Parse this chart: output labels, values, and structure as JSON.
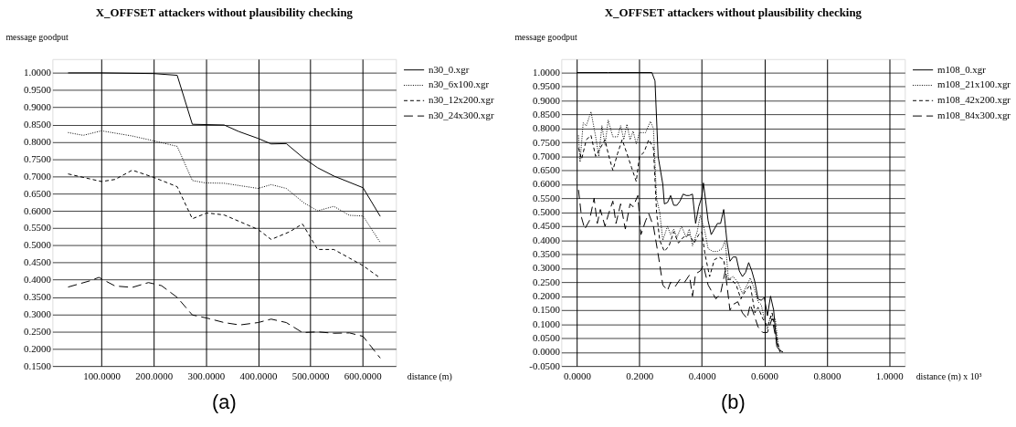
{
  "chart_data": [
    {
      "type": "line",
      "title": "X_OFFSET attackers without plausibility checking",
      "ylabel": "message goodput",
      "xlabel": "distance (m)",
      "annotations": [
        "(a)"
      ],
      "grid": true,
      "legend": "top right",
      "xlim": [
        6,
        664
      ],
      "ylim": [
        0.15,
        1.04
      ],
      "xticks": [
        {
          "value": 100,
          "label": "100.0000"
        },
        {
          "value": 200,
          "label": "200.0000"
        },
        {
          "value": 300,
          "label": "300.0000"
        },
        {
          "value": 400,
          "label": "400.0000"
        },
        {
          "value": 500,
          "label": "500.0000"
        },
        {
          "value": 600,
          "label": "600.0000"
        }
      ],
      "yticks": [
        {
          "value": 0.15,
          "label": "0.1500"
        },
        {
          "value": 0.2,
          "label": "0.2000"
        },
        {
          "value": 0.25,
          "label": "0.2500"
        },
        {
          "value": 0.3,
          "label": "0.3000"
        },
        {
          "value": 0.35,
          "label": "0.3500"
        },
        {
          "value": 0.4,
          "label": "0.4000"
        },
        {
          "value": 0.45,
          "label": "0.4500"
        },
        {
          "value": 0.5,
          "label": "0.5000"
        },
        {
          "value": 0.55,
          "label": "0.5500"
        },
        {
          "value": 0.6,
          "label": "0.6000"
        },
        {
          "value": 0.65,
          "label": "0.6500"
        },
        {
          "value": 0.7,
          "label": "0.7000"
        },
        {
          "value": 0.75,
          "label": "0.7500"
        },
        {
          "value": 0.8,
          "label": "0.8000"
        },
        {
          "value": 0.85,
          "label": "0.8500"
        },
        {
          "value": 0.9,
          "label": "0.9000"
        },
        {
          "value": 0.95,
          "label": "0.9500"
        },
        {
          "value": 1.0,
          "label": "1.0000"
        }
      ],
      "series": [
        {
          "name": "n30_0.xgr",
          "color": "#000000",
          "line_style": "solid",
          "x": [
            36,
            100,
            200,
            245,
            274,
            335,
            363,
            400,
            425,
            454,
            487,
            514,
            545,
            601,
            634
          ],
          "values": [
            1.0,
            1.0,
            0.998,
            0.993,
            0.851,
            0.849,
            0.83,
            0.81,
            0.794,
            0.795,
            0.753,
            0.725,
            0.701,
            0.667,
            0.584
          ]
        },
        {
          "name": "n30_6x100.xgr",
          "color": "#000000",
          "line_style": "dotted",
          "x": [
            36,
            65,
            100,
            159,
            200,
            245,
            274,
            299,
            335,
            400,
            425,
            454,
            487,
            514,
            545,
            575,
            601,
            634
          ],
          "values": [
            0.827,
            0.819,
            0.832,
            0.817,
            0.803,
            0.787,
            0.688,
            0.681,
            0.68,
            0.665,
            0.676,
            0.665,
            0.624,
            0.6,
            0.613,
            0.587,
            0.585,
            0.508
          ]
        },
        {
          "name": "n30_12x200.xgr",
          "color": "#000000",
          "line_style": "dashed",
          "x": [
            36,
            100,
            126,
            159,
            200,
            245,
            274,
            302,
            335,
            400,
            425,
            460,
            485,
            514,
            545,
            575,
            601,
            634
          ],
          "values": [
            0.707,
            0.685,
            0.691,
            0.718,
            0.697,
            0.67,
            0.577,
            0.594,
            0.588,
            0.546,
            0.517,
            0.539,
            0.562,
            0.488,
            0.488,
            0.463,
            0.441,
            0.405
          ]
        },
        {
          "name": "n30_24x300.xgr",
          "color": "#000000",
          "line_style": "dashed",
          "x": [
            36,
            80,
            95,
            126,
            159,
            190,
            215,
            245,
            274,
            302,
            335,
            365,
            400,
            425,
            454,
            485,
            514,
            545,
            575,
            601,
            634
          ],
          "values": [
            0.379,
            0.398,
            0.407,
            0.382,
            0.378,
            0.392,
            0.383,
            0.349,
            0.298,
            0.289,
            0.276,
            0.269,
            0.276,
            0.286,
            0.276,
            0.247,
            0.249,
            0.245,
            0.246,
            0.236,
            0.173
          ]
        }
      ]
    },
    {
      "type": "line",
      "title": "X_OFFSET attackers without plausibility checking",
      "ylabel": "message goodput",
      "xlabel": "distance (m) x 10³",
      "annotations": [
        "(b)"
      ],
      "grid": true,
      "legend": "top right",
      "xlim": [
        -0.05,
        1.05
      ],
      "ylim": [
        -0.05,
        1.048
      ],
      "xticks": [
        {
          "value": 0,
          "label": "0.0000"
        },
        {
          "value": 0.2,
          "label": "0.2000"
        },
        {
          "value": 0.4,
          "label": "0.4000"
        },
        {
          "value": 0.6,
          "label": "0.6000"
        },
        {
          "value": 0.8,
          "label": "0.8000"
        },
        {
          "value": 1.0,
          "label": "1.0000"
        }
      ],
      "yticks": [
        {
          "value": -0.05,
          "label": "-0.0500"
        },
        {
          "value": 0,
          "label": "0.0000"
        },
        {
          "value": 0.05,
          "label": "0.0500"
        },
        {
          "value": 0.1,
          "label": "0.1000"
        },
        {
          "value": 0.15,
          "label": "0.1500"
        },
        {
          "value": 0.2,
          "label": "0.2000"
        },
        {
          "value": 0.25,
          "label": "0.2500"
        },
        {
          "value": 0.3,
          "label": "0.3000"
        },
        {
          "value": 0.35,
          "label": "0.3500"
        },
        {
          "value": 0.4,
          "label": "0.4000"
        },
        {
          "value": 0.45,
          "label": "0.4500"
        },
        {
          "value": 0.5,
          "label": "0.5000"
        },
        {
          "value": 0.55,
          "label": "0.5500"
        },
        {
          "value": 0.6,
          "label": "0.6000"
        },
        {
          "value": 0.65,
          "label": "0.6500"
        },
        {
          "value": 0.7,
          "label": "0.7000"
        },
        {
          "value": 0.75,
          "label": "0.7500"
        },
        {
          "value": 0.8,
          "label": "0.8000"
        },
        {
          "value": 0.85,
          "label": "0.8500"
        },
        {
          "value": 0.9,
          "label": "0.9000"
        },
        {
          "value": 0.95,
          "label": "0.9500"
        },
        {
          "value": 1.0,
          "label": "1.0000"
        }
      ],
      "series": [
        {
          "name": "m108_0.xgr",
          "color": "#000000",
          "line_style": "solid",
          "x": [
            0.0,
            0.1,
            0.24,
            0.25,
            0.26,
            0.275,
            0.28,
            0.29,
            0.3,
            0.31,
            0.32,
            0.33,
            0.34,
            0.35,
            0.36,
            0.37,
            0.38,
            0.39,
            0.4,
            0.405,
            0.42,
            0.43,
            0.45,
            0.46,
            0.47,
            0.48,
            0.49,
            0.5,
            0.51,
            0.52,
            0.53,
            0.54,
            0.55,
            0.56,
            0.57,
            0.58,
            0.59,
            0.6,
            0.61,
            0.62,
            0.63,
            0.64,
            0.65,
            0.66
          ],
          "values": [
            1.0,
            1.0,
            1.0,
            0.97,
            0.7,
            0.6,
            0.53,
            0.535,
            0.56,
            0.525,
            0.525,
            0.54,
            0.565,
            0.56,
            0.56,
            0.565,
            0.46,
            0.52,
            0.555,
            0.605,
            0.47,
            0.42,
            0.46,
            0.46,
            0.51,
            0.4,
            0.325,
            0.34,
            0.34,
            0.29,
            0.27,
            0.285,
            0.32,
            0.29,
            0.25,
            0.19,
            0.185,
            0.195,
            0.13,
            0.2,
            0.15,
            0.02,
            0.005,
            0.0
          ]
        },
        {
          "name": "m108_21x100.xgr",
          "color": "#000000",
          "line_style": "dotted",
          "x": [
            0.005,
            0.01,
            0.02,
            0.03,
            0.045,
            0.06,
            0.07,
            0.08,
            0.09,
            0.1,
            0.115,
            0.13,
            0.14,
            0.15,
            0.16,
            0.17,
            0.18,
            0.19,
            0.2,
            0.22,
            0.235,
            0.245,
            0.255,
            0.265,
            0.275,
            0.29,
            0.3,
            0.31,
            0.32,
            0.335,
            0.35,
            0.36,
            0.37,
            0.385,
            0.395,
            0.41,
            0.42,
            0.435,
            0.45,
            0.465,
            0.475,
            0.485,
            0.5,
            0.515,
            0.53,
            0.545,
            0.555,
            0.57,
            0.58,
            0.59,
            0.6,
            0.61,
            0.62,
            0.635,
            0.645,
            0.655
          ],
          "values": [
            0.775,
            0.68,
            0.82,
            0.81,
            0.86,
            0.77,
            0.7,
            0.81,
            0.74,
            0.83,
            0.77,
            0.77,
            0.81,
            0.76,
            0.815,
            0.76,
            0.79,
            0.745,
            0.785,
            0.785,
            0.825,
            0.8,
            0.55,
            0.5,
            0.4,
            0.45,
            0.42,
            0.44,
            0.41,
            0.45,
            0.41,
            0.44,
            0.38,
            0.43,
            0.49,
            0.43,
            0.37,
            0.36,
            0.36,
            0.37,
            0.4,
            0.26,
            0.27,
            0.25,
            0.21,
            0.24,
            0.265,
            0.22,
            0.18,
            0.17,
            0.12,
            0.08,
            0.13,
            0.12,
            0.02,
            0.0
          ]
        },
        {
          "name": "m108_42x200.xgr",
          "color": "#000000",
          "line_style": "dashed",
          "x": [
            0.005,
            0.015,
            0.03,
            0.045,
            0.06,
            0.075,
            0.09,
            0.1,
            0.115,
            0.13,
            0.145,
            0.16,
            0.175,
            0.19,
            0.2,
            0.215,
            0.23,
            0.245,
            0.255,
            0.265,
            0.28,
            0.295,
            0.31,
            0.325,
            0.34,
            0.36,
            0.375,
            0.39,
            0.4,
            0.41,
            0.425,
            0.44,
            0.455,
            0.47,
            0.48,
            0.495,
            0.51,
            0.525,
            0.54,
            0.555,
            0.57,
            0.58,
            0.595,
            0.61,
            0.625,
            0.64,
            0.65
          ],
          "values": [
            0.73,
            0.69,
            0.76,
            0.775,
            0.7,
            0.73,
            0.76,
            0.71,
            0.65,
            0.71,
            0.76,
            0.71,
            0.66,
            0.61,
            0.7,
            0.715,
            0.76,
            0.73,
            0.5,
            0.4,
            0.36,
            0.38,
            0.43,
            0.39,
            0.41,
            0.42,
            0.39,
            0.42,
            0.43,
            0.35,
            0.27,
            0.33,
            0.34,
            0.33,
            0.26,
            0.26,
            0.24,
            0.19,
            0.22,
            0.24,
            0.14,
            0.16,
            0.12,
            0.09,
            0.14,
            0.05,
            0.0
          ]
        },
        {
          "name": "m108_84x300.xgr",
          "color": "#000000",
          "line_style": "dashed",
          "x": [
            0.005,
            0.015,
            0.025,
            0.04,
            0.055,
            0.065,
            0.075,
            0.09,
            0.1,
            0.115,
            0.125,
            0.14,
            0.155,
            0.17,
            0.18,
            0.195,
            0.205,
            0.22,
            0.23,
            0.245,
            0.26,
            0.275,
            0.29,
            0.3,
            0.315,
            0.33,
            0.345,
            0.36,
            0.37,
            0.38,
            0.395,
            0.405,
            0.42,
            0.435,
            0.445,
            0.46,
            0.475,
            0.49,
            0.5,
            0.515,
            0.53,
            0.545,
            0.555,
            0.565,
            0.58,
            0.595,
            0.61,
            0.625,
            0.64,
            0.65
          ],
          "values": [
            0.58,
            0.48,
            0.44,
            0.47,
            0.55,
            0.46,
            0.51,
            0.45,
            0.49,
            0.54,
            0.46,
            0.53,
            0.44,
            0.53,
            0.52,
            0.56,
            0.42,
            0.47,
            0.495,
            0.45,
            0.35,
            0.24,
            0.22,
            0.25,
            0.235,
            0.26,
            0.25,
            0.275,
            0.2,
            0.28,
            0.29,
            0.31,
            0.24,
            0.21,
            0.19,
            0.21,
            0.29,
            0.15,
            0.17,
            0.18,
            0.14,
            0.12,
            0.17,
            0.14,
            0.09,
            0.07,
            0.07,
            0.12,
            0.03,
            0.01
          ]
        }
      ]
    }
  ]
}
